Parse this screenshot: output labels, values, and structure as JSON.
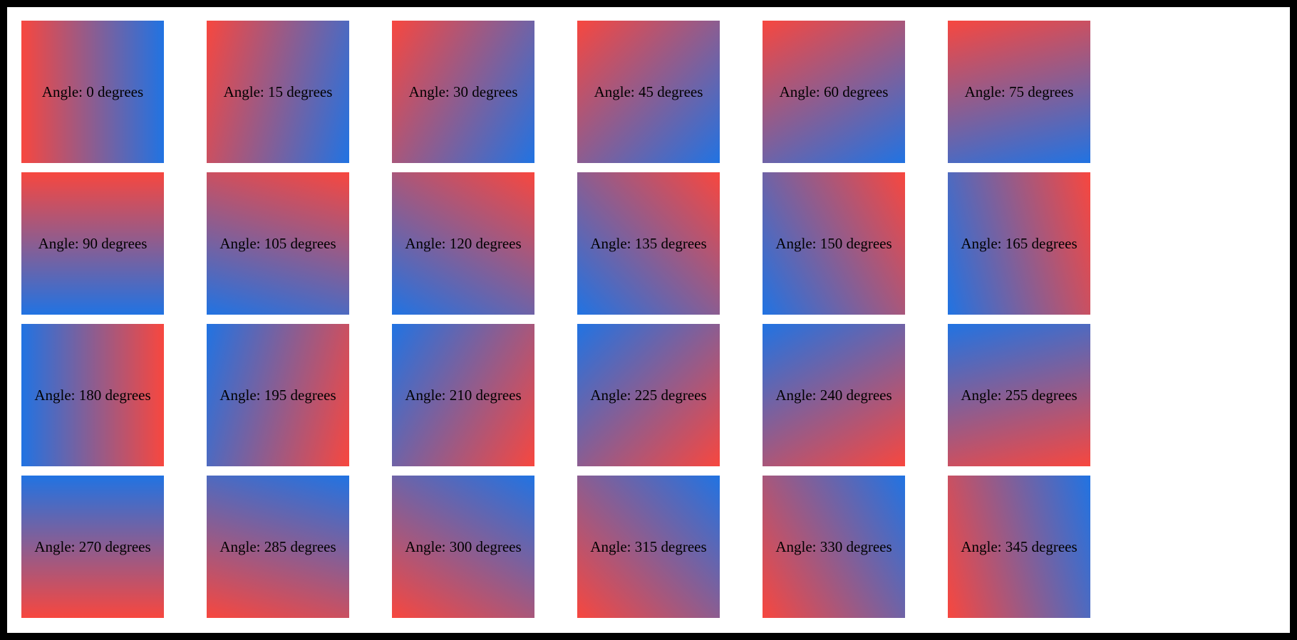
{
  "page": {
    "frame_color": "#000000",
    "surface_color": "#ffffff"
  },
  "gradient": {
    "start_color": "#f7473f",
    "end_color": "#2173e2",
    "css_angle_offset": 90
  },
  "tiles": [
    {
      "angle": 0,
      "label": "Angle: 0 degrees"
    },
    {
      "angle": 15,
      "label": "Angle: 15 degrees"
    },
    {
      "angle": 30,
      "label": "Angle: 30 degrees"
    },
    {
      "angle": 45,
      "label": "Angle: 45 degrees"
    },
    {
      "angle": 60,
      "label": "Angle: 60 degrees"
    },
    {
      "angle": 75,
      "label": "Angle: 75 degrees"
    },
    {
      "angle": 90,
      "label": "Angle: 90 degrees"
    },
    {
      "angle": 105,
      "label": "Angle: 105 degrees"
    },
    {
      "angle": 120,
      "label": "Angle: 120 degrees"
    },
    {
      "angle": 135,
      "label": "Angle: 135 degrees"
    },
    {
      "angle": 150,
      "label": "Angle: 150 degrees"
    },
    {
      "angle": 165,
      "label": "Angle: 165 degrees"
    },
    {
      "angle": 180,
      "label": "Angle: 180 degrees"
    },
    {
      "angle": 195,
      "label": "Angle: 195 degrees"
    },
    {
      "angle": 210,
      "label": "Angle: 210 degrees"
    },
    {
      "angle": 225,
      "label": "Angle: 225 degrees"
    },
    {
      "angle": 240,
      "label": "Angle: 240 degrees"
    },
    {
      "angle": 255,
      "label": "Angle: 255 degrees"
    },
    {
      "angle": 270,
      "label": "Angle: 270 degrees"
    },
    {
      "angle": 285,
      "label": "Angle: 285 degrees"
    },
    {
      "angle": 300,
      "label": "Angle: 300 degrees"
    },
    {
      "angle": 315,
      "label": "Angle: 315 degrees"
    },
    {
      "angle": 330,
      "label": "Angle: 330 degrees"
    },
    {
      "angle": 345,
      "label": "Angle: 345 degrees"
    }
  ]
}
